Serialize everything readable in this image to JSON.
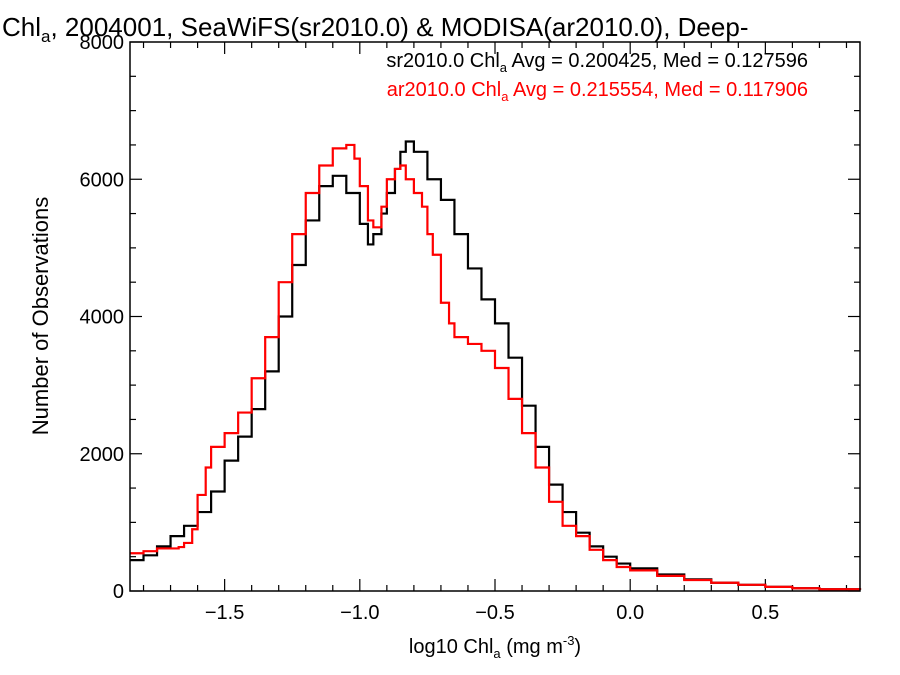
{
  "chart_data": {
    "type": "line",
    "title": {
      "prefix": "Chl",
      "sub": "a",
      "rest": ", 2004001, SeaWiFS(sr2010.0) & MODISA(ar2010.0), Deep-"
    },
    "xlabel": {
      "prefix": "log10 Chl",
      "sub": "a",
      "mid": " (mg m",
      "sup": "-3",
      "end": ")"
    },
    "ylabel": "Number of Observations",
    "xlim": [
      -1.85,
      0.85
    ],
    "ylim": [
      0,
      8000
    ],
    "x_ticks": [
      -1.5,
      -1.0,
      -0.5,
      0.0,
      0.5
    ],
    "x_tick_labels": [
      "−1.5",
      "−1.0",
      "−0.5",
      "0.0",
      "0.5"
    ],
    "y_ticks": [
      0,
      2000,
      4000,
      6000,
      8000
    ],
    "y_tick_labels": [
      "0",
      "2000",
      "4000",
      "6000",
      "8000"
    ],
    "legend": {
      "position": "top-right",
      "entries": [
        {
          "pre": "sr2010.0 Chl",
          "sub": "a",
          "post": " Avg = 0.200425, Med = 0.127596",
          "color": "#000000"
        },
        {
          "pre": "ar2010.0 Chl",
          "sub": "a",
          "post": " Avg = 0.215554, Med = 0.117906",
          "color": "#ff0000"
        }
      ]
    },
    "series": [
      {
        "name": "sr2010.0",
        "color": "#000000",
        "points": [
          [
            -1.85,
            450
          ],
          [
            -1.8,
            520
          ],
          [
            -1.75,
            650
          ],
          [
            -1.7,
            800
          ],
          [
            -1.65,
            950
          ],
          [
            -1.6,
            1150
          ],
          [
            -1.55,
            1450
          ],
          [
            -1.5,
            1900
          ],
          [
            -1.45,
            2250
          ],
          [
            -1.4,
            2650
          ],
          [
            -1.35,
            3200
          ],
          [
            -1.3,
            4000
          ],
          [
            -1.25,
            4750
          ],
          [
            -1.2,
            5400
          ],
          [
            -1.15,
            5900
          ],
          [
            -1.1,
            6050
          ],
          [
            -1.05,
            5800
          ],
          [
            -1.0,
            5350
          ],
          [
            -0.97,
            5050
          ],
          [
            -0.95,
            5200
          ],
          [
            -0.92,
            5500
          ],
          [
            -0.9,
            5800
          ],
          [
            -0.87,
            6150
          ],
          [
            -0.85,
            6400
          ],
          [
            -0.83,
            6550
          ],
          [
            -0.8,
            6400
          ],
          [
            -0.75,
            6000
          ],
          [
            -0.7,
            5700
          ],
          [
            -0.65,
            5200
          ],
          [
            -0.6,
            4700
          ],
          [
            -0.55,
            4250
          ],
          [
            -0.5,
            3900
          ],
          [
            -0.45,
            3400
          ],
          [
            -0.4,
            2700
          ],
          [
            -0.35,
            2100
          ],
          [
            -0.3,
            1550
          ],
          [
            -0.25,
            1150
          ],
          [
            -0.2,
            850
          ],
          [
            -0.15,
            650
          ],
          [
            -0.1,
            500
          ],
          [
            -0.05,
            400
          ],
          [
            0.0,
            330
          ],
          [
            0.1,
            240
          ],
          [
            0.2,
            170
          ],
          [
            0.3,
            120
          ],
          [
            0.4,
            90
          ],
          [
            0.5,
            60
          ],
          [
            0.6,
            40
          ],
          [
            0.7,
            25
          ],
          [
            0.85,
            15
          ]
        ]
      },
      {
        "name": "ar2010.0",
        "color": "#ff0000",
        "points": [
          [
            -1.85,
            550
          ],
          [
            -1.8,
            580
          ],
          [
            -1.75,
            620
          ],
          [
            -1.7,
            620
          ],
          [
            -1.67,
            640
          ],
          [
            -1.65,
            700
          ],
          [
            -1.62,
            900
          ],
          [
            -1.6,
            1400
          ],
          [
            -1.57,
            1800
          ],
          [
            -1.55,
            2100
          ],
          [
            -1.5,
            2300
          ],
          [
            -1.45,
            2600
          ],
          [
            -1.4,
            3100
          ],
          [
            -1.35,
            3700
          ],
          [
            -1.3,
            4500
          ],
          [
            -1.25,
            5200
          ],
          [
            -1.2,
            5800
          ],
          [
            -1.15,
            6200
          ],
          [
            -1.1,
            6450
          ],
          [
            -1.05,
            6500
          ],
          [
            -1.02,
            6300
          ],
          [
            -1.0,
            5900
          ],
          [
            -0.97,
            5400
          ],
          [
            -0.95,
            5300
          ],
          [
            -0.92,
            5600
          ],
          [
            -0.9,
            6000
          ],
          [
            -0.87,
            6150
          ],
          [
            -0.85,
            6200
          ],
          [
            -0.83,
            6000
          ],
          [
            -0.8,
            5800
          ],
          [
            -0.77,
            5600
          ],
          [
            -0.75,
            5200
          ],
          [
            -0.73,
            4900
          ],
          [
            -0.7,
            4200
          ],
          [
            -0.67,
            3900
          ],
          [
            -0.65,
            3700
          ],
          [
            -0.6,
            3600
          ],
          [
            -0.55,
            3500
          ],
          [
            -0.5,
            3250
          ],
          [
            -0.45,
            2800
          ],
          [
            -0.4,
            2300
          ],
          [
            -0.35,
            1800
          ],
          [
            -0.3,
            1300
          ],
          [
            -0.25,
            950
          ],
          [
            -0.2,
            800
          ],
          [
            -0.15,
            600
          ],
          [
            -0.1,
            450
          ],
          [
            -0.05,
            350
          ],
          [
            0.0,
            300
          ],
          [
            0.1,
            220
          ],
          [
            0.2,
            160
          ],
          [
            0.3,
            120
          ],
          [
            0.4,
            90
          ],
          [
            0.5,
            60
          ],
          [
            0.6,
            40
          ],
          [
            0.7,
            25
          ],
          [
            0.85,
            15
          ]
        ]
      }
    ]
  }
}
